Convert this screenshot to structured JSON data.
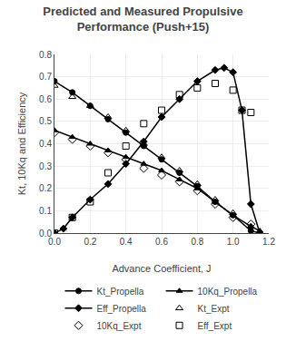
{
  "chart_data": {
    "type": "line",
    "title": "Predicted and Measured Propulsive",
    "subtitle": "Performance (Push+15)",
    "x_label": "Advance Coefficient, J",
    "y_label": "Kt, 10Kq and Efficiency",
    "xlim": [
      0,
      1.2
    ],
    "ylim": [
      0,
      0.8
    ],
    "xticks": [
      {
        "value": 0,
        "label": "0.0"
      },
      0.2,
      0.4,
      0.6,
      0.8,
      {
        "value": 1.0,
        "label": "1.0"
      },
      1.2
    ],
    "yticks": [
      {
        "value": 0,
        "label": "0.0"
      },
      0.1,
      0.2,
      0.3,
      0.4,
      0.5,
      0.6,
      0.7,
      0.8
    ],
    "legend": "bottom",
    "series": [
      {
        "name": "Kt_Propella",
        "color": "#000000",
        "marker": "circle",
        "line_style": "solid",
        "x": [
          0.0,
          0.1,
          0.2,
          0.3,
          0.4,
          0.5,
          0.6,
          0.7,
          0.8,
          0.9,
          1.0,
          1.1,
          1.15
        ],
        "values": [
          0.68,
          0.63,
          0.57,
          0.51,
          0.45,
          0.39,
          0.33,
          0.27,
          0.21,
          0.14,
          0.08,
          0.01,
          0.0
        ]
      },
      {
        "name": "10Kq_Propella",
        "color": "#000000",
        "marker": "triangle-up",
        "line_style": "solid",
        "x": [
          0.0,
          0.1,
          0.2,
          0.3,
          0.4,
          0.5,
          0.6,
          0.7,
          0.8,
          0.9,
          1.0,
          1.1,
          1.15
        ],
        "values": [
          0.46,
          0.43,
          0.4,
          0.37,
          0.34,
          0.31,
          0.28,
          0.24,
          0.2,
          0.14,
          0.08,
          0.03,
          0.01
        ]
      },
      {
        "name": "Eff_Propella",
        "color": "#000000",
        "marker": "diamond",
        "line_style": "solid",
        "x": [
          0.0,
          0.05,
          0.1,
          0.2,
          0.3,
          0.4,
          0.5,
          0.6,
          0.7,
          0.8,
          0.9,
          0.95,
          1.0,
          1.05,
          1.1,
          1.15
        ],
        "values": [
          0.0,
          0.02,
          0.07,
          0.15,
          0.22,
          0.31,
          0.41,
          0.52,
          0.6,
          0.68,
          0.73,
          0.74,
          0.72,
          0.55,
          0.13,
          0.0
        ]
      },
      {
        "name": "Kt_Expt",
        "color": "#000000",
        "marker": "triangle-up-open",
        "line_style": "none",
        "x": [
          0.0,
          0.1,
          0.2,
          0.3,
          0.4,
          0.5,
          0.6,
          0.7,
          0.8,
          0.9,
          1.0,
          1.1
        ],
        "values": [
          0.66,
          0.61,
          0.57,
          0.52,
          0.46,
          0.4,
          0.34,
          0.28,
          0.22,
          0.15,
          0.09,
          0.03
        ]
      },
      {
        "name": "10Kq_Expt",
        "color": "#000000",
        "marker": "diamond-open",
        "line_style": "none",
        "x": [
          0.0,
          0.1,
          0.2,
          0.3,
          0.4,
          0.5,
          0.6,
          0.7,
          0.8,
          0.9,
          1.0,
          1.1
        ],
        "values": [
          0.45,
          0.42,
          0.39,
          0.36,
          0.33,
          0.29,
          0.26,
          0.23,
          0.19,
          0.13,
          0.07,
          0.04
        ]
      },
      {
        "name": "Eff_Expt",
        "color": "#000000",
        "marker": "square-open",
        "line_style": "none",
        "x": [
          0.0,
          0.1,
          0.2,
          0.3,
          0.4,
          0.5,
          0.6,
          0.7,
          0.8,
          0.9,
          1.0,
          1.05,
          1.1
        ],
        "values": [
          0.0,
          0.07,
          0.14,
          0.27,
          0.39,
          0.49,
          0.55,
          0.62,
          0.65,
          0.67,
          0.64,
          0.55,
          0.54
        ]
      }
    ]
  }
}
